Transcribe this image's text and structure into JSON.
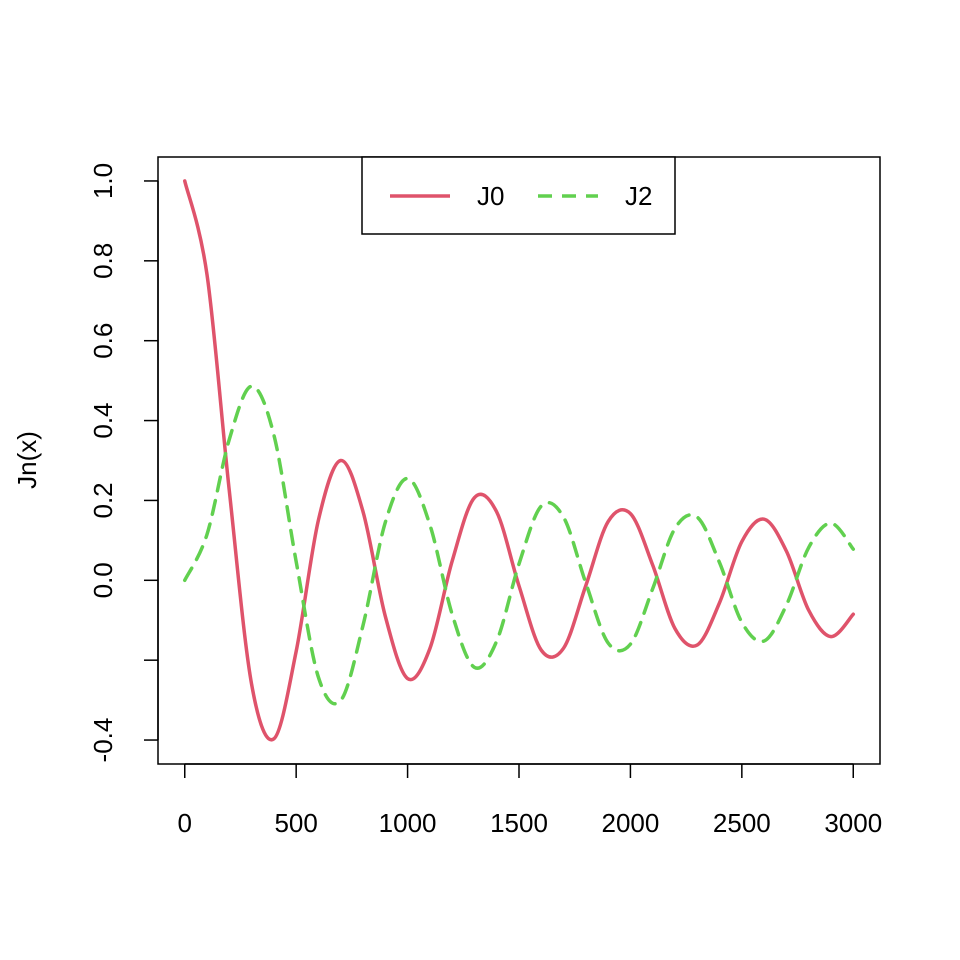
{
  "chart_data": {
    "type": "line",
    "title": "",
    "xlabel": "",
    "ylabel": "Jn(x)",
    "xlim": [
      -120,
      3120
    ],
    "ylim": [
      -0.46,
      1.06
    ],
    "x_ticks": [
      0,
      500,
      1000,
      1500,
      2000,
      2500,
      3000
    ],
    "x_tick_labels": [
      "0",
      "500",
      "1000",
      "1500",
      "2000",
      "2500",
      "3000"
    ],
    "y_ticks": [
      -0.4,
      -0.2,
      0.0,
      0.2,
      0.4,
      0.6,
      0.8,
      1.0
    ],
    "y_tick_labels": [
      "-0.4",
      "",
      "0.0",
      "0.2",
      "0.4",
      "0.6",
      "0.8",
      "1.0"
    ],
    "grid": false,
    "legend_position": "top",
    "x": [
      0,
      100,
      200,
      300,
      400,
      500,
      600,
      700,
      800,
      900,
      1000,
      1100,
      1200,
      1300,
      1400,
      1500,
      1600,
      1700,
      1800,
      1900,
      2000,
      2100,
      2200,
      2300,
      2400,
      2500,
      2600,
      2700,
      2800,
      2900,
      3000
    ],
    "series": [
      {
        "name": "J0",
        "color": "#DF536B",
        "dash": "solid",
        "values": [
          1.0,
          0.765,
          0.224,
          -0.26,
          -0.397,
          -0.178,
          0.151,
          0.3,
          0.172,
          -0.09,
          -0.246,
          -0.171,
          0.048,
          0.207,
          0.171,
          -0.014,
          -0.175,
          -0.17,
          -0.013,
          0.147,
          0.167,
          0.038,
          -0.121,
          -0.162,
          -0.056,
          0.097,
          0.153,
          0.073,
          -0.075,
          -0.141,
          -0.085
        ]
      },
      {
        "name": "J2",
        "color": "#61D04F",
        "dash": "dashed",
        "values": [
          0.0,
          0.115,
          0.353,
          0.486,
          0.364,
          0.047,
          -0.243,
          -0.301,
          -0.113,
          0.145,
          0.255,
          0.139,
          -0.085,
          -0.218,
          -0.152,
          0.041,
          0.186,
          0.158,
          -0.007,
          -0.157,
          -0.16,
          -0.021,
          0.13,
          0.158,
          0.044,
          -0.105,
          -0.152,
          -0.062,
          0.082,
          0.143,
          0.078
        ]
      }
    ]
  }
}
